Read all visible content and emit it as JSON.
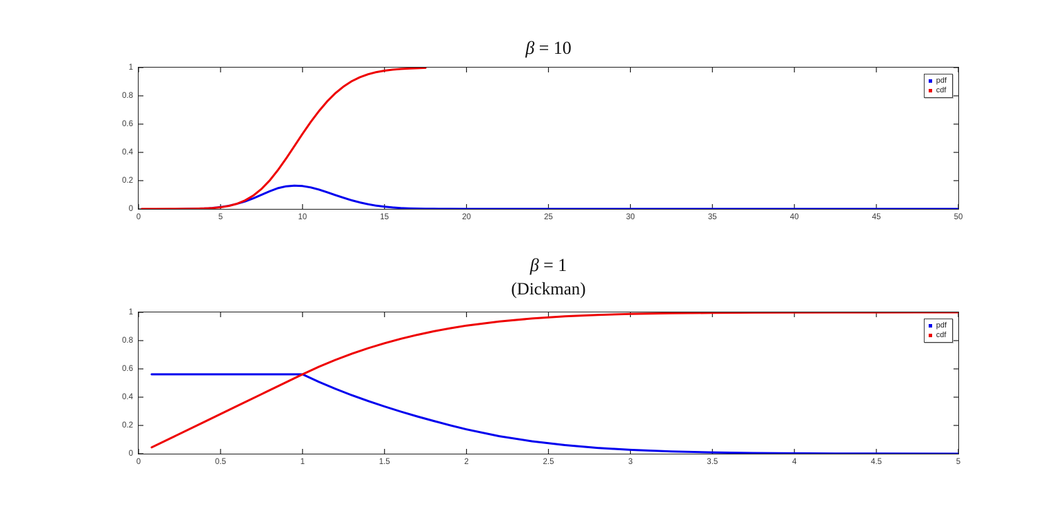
{
  "figure": {
    "background": "#ffffff",
    "axis_color": "#1c1c1c",
    "tick_label_color": "#3a3a3a"
  },
  "chart_data": [
    {
      "type": "line",
      "title": "β = 10",
      "title_symbol": "β",
      "title_eq": " = 10",
      "subtitle": "",
      "xlim": [
        0,
        50
      ],
      "ylim": [
        0,
        1
      ],
      "xticks": [
        0,
        5,
        10,
        15,
        20,
        25,
        30,
        35,
        40,
        45,
        50
      ],
      "yticks": [
        0,
        0.2,
        0.4,
        0.6,
        0.8,
        1
      ],
      "grid": false,
      "legend": [
        "pdf",
        "cdf"
      ],
      "legend_position": "top-right",
      "series": [
        {
          "name": "pdf",
          "color": "#0000ee",
          "x": [
            0.2,
            1,
            2,
            3,
            3.5,
            4,
            4.5,
            5,
            5.5,
            6,
            6.5,
            7,
            7.5,
            8,
            8.5,
            9,
            9.5,
            10,
            10.5,
            11,
            11.5,
            12,
            12.5,
            13,
            13.5,
            14,
            14.5,
            15,
            15.5,
            16,
            16.5,
            17,
            17.5,
            18,
            19,
            20,
            22,
            25,
            30,
            35,
            40,
            45,
            50
          ],
          "y": [
            0,
            0,
            0.0002,
            0.001,
            0.002,
            0.0035,
            0.007,
            0.013,
            0.022,
            0.036,
            0.053,
            0.075,
            0.1,
            0.125,
            0.147,
            0.16,
            0.165,
            0.162,
            0.152,
            0.137,
            0.118,
            0.098,
            0.079,
            0.061,
            0.046,
            0.033,
            0.023,
            0.0155,
            0.01,
            0.0065,
            0.004,
            0.0024,
            0.0014,
            0.0008,
            0.0003,
            0.0001,
            0,
            0,
            0,
            0,
            0,
            0,
            0
          ]
        },
        {
          "name": "cdf",
          "color": "#ee0000",
          "x": [
            0.2,
            1,
            2,
            3,
            3.5,
            4,
            4.5,
            5,
            5.5,
            6,
            6.5,
            7,
            7.5,
            8,
            8.5,
            9,
            9.5,
            10,
            10.5,
            11,
            11.5,
            12,
            12.5,
            13,
            13.5,
            14,
            14.5,
            15,
            15.5,
            16,
            16.5,
            17,
            17.5
          ],
          "y": [
            0,
            0,
            0.0005,
            0.001,
            0.002,
            0.0035,
            0.0064,
            0.0118,
            0.0212,
            0.0367,
            0.0604,
            0.0947,
            0.1415,
            0.2017,
            0.2744,
            0.3566,
            0.4436,
            0.531,
            0.615,
            0.6924,
            0.7606,
            0.8183,
            0.8657,
            0.9032,
            0.9317,
            0.9529,
            0.9679,
            0.9782,
            0.9853,
            0.9901,
            0.9933,
            0.9957,
            0.998
          ]
        }
      ]
    },
    {
      "type": "line",
      "title": "β = 1",
      "title_symbol": "β",
      "title_eq": " = 1",
      "subtitle": "(Dickman)",
      "xlim": [
        0,
        5
      ],
      "ylim": [
        0,
        1
      ],
      "xticks": [
        0,
        0.5,
        1,
        1.5,
        2,
        2.5,
        3,
        3.5,
        4,
        4.5,
        5
      ],
      "yticks": [
        0,
        0.2,
        0.4,
        0.6,
        0.8,
        1
      ],
      "grid": false,
      "legend": [
        "pdf",
        "cdf"
      ],
      "legend_position": "top-right",
      "series": [
        {
          "name": "pdf",
          "color": "#0000ee",
          "x": [
            0.08,
            0.2,
            0.4,
            0.6,
            0.8,
            0.9,
            1.0,
            1.1,
            1.2,
            1.3,
            1.4,
            1.5,
            1.6,
            1.7,
            1.8,
            1.9,
            2.0,
            2.2,
            2.4,
            2.6,
            2.8,
            3.0,
            3.25,
            3.5,
            3.75,
            4.0,
            4.25,
            4.5,
            4.75,
            5.0
          ],
          "y": [
            0.5615,
            0.5615,
            0.5615,
            0.5615,
            0.5615,
            0.5615,
            0.5615,
            0.508,
            0.459,
            0.414,
            0.3726,
            0.334,
            0.2976,
            0.2635,
            0.2315,
            0.2012,
            0.1723,
            0.1237,
            0.0876,
            0.0608,
            0.0412,
            0.0273,
            0.0159,
            0.0091,
            0.005,
            0.0028,
            0.0016,
            0.0008,
            0.0004,
            0.0002
          ]
        },
        {
          "name": "cdf",
          "color": "#ee0000",
          "x": [
            0.08,
            0.2,
            0.4,
            0.6,
            0.8,
            0.9,
            1.0,
            1.1,
            1.2,
            1.3,
            1.4,
            1.5,
            1.6,
            1.7,
            1.8,
            1.9,
            2.0,
            2.2,
            2.4,
            2.6,
            2.8,
            3.0,
            3.25,
            3.5,
            3.75,
            4.0,
            4.25,
            4.5,
            4.75,
            5.0
          ],
          "y": [
            0.045,
            0.1123,
            0.2246,
            0.3369,
            0.4492,
            0.5054,
            0.5615,
            0.615,
            0.6632,
            0.7069,
            0.7462,
            0.7815,
            0.8131,
            0.8411,
            0.8658,
            0.8874,
            0.9061,
            0.9357,
            0.9568,
            0.9716,
            0.9818,
            0.9887,
            0.9936,
            0.9963,
            0.998,
            0.9989,
            0.9994,
            0.9997,
            0.9998,
            0.9999
          ]
        }
      ]
    }
  ]
}
